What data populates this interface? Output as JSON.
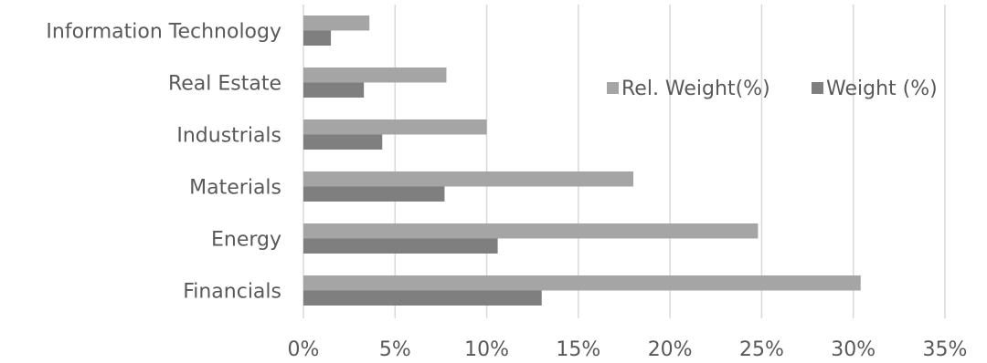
{
  "chart_data": {
    "type": "bar",
    "orientation": "horizontal",
    "categories": [
      "Information Technology",
      "Real Estate",
      "Industrials",
      "Materials",
      "Energy",
      "Financials"
    ],
    "series": [
      {
        "name": "Rel. Weight(%)",
        "color": "#a5a5a5",
        "values": [
          3.6,
          7.8,
          10.0,
          18.0,
          24.8,
          30.4
        ]
      },
      {
        "name": "Weight (%)",
        "color": "#7f7f7f",
        "values": [
          1.5,
          3.3,
          4.3,
          7.7,
          10.6,
          13.0
        ]
      }
    ],
    "xlim": [
      0,
      35
    ],
    "x_ticks": [
      "0%",
      "5%",
      "10%",
      "15%",
      "20%",
      "25%",
      "30%",
      "35%"
    ],
    "grid": "vertical",
    "legend_position": "top-right"
  }
}
